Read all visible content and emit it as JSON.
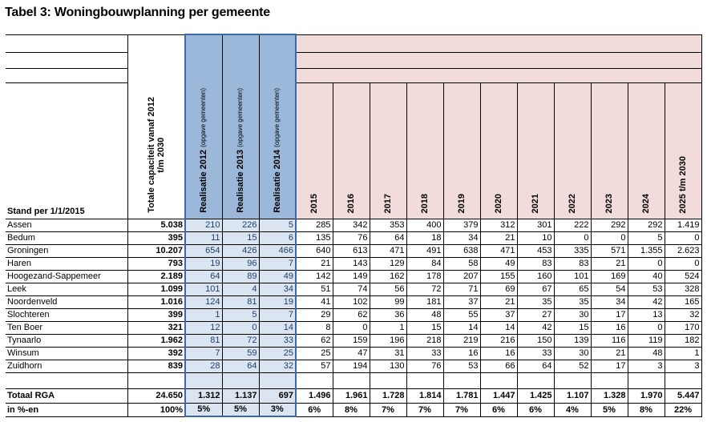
{
  "title": "Tabel 3: Woningbouwplanning per gemeente",
  "header": {
    "stand": "Stand per 1/1/2015",
    "capacity_line1": "Totale capaciteit vanaf 2012",
    "capacity_line2": "t/m 2030",
    "realisatie": [
      {
        "label": "Realisatie 2012",
        "note": "(opgave gemeenten)"
      },
      {
        "label": "Realisatie 2013",
        "note": "(opgave gemeenten)"
      },
      {
        "label": "Realisatie 2014",
        "note": "(opgave gemeenten)"
      }
    ],
    "years": [
      "2015",
      "2016",
      "2017",
      "2018",
      "2019",
      "2020",
      "2021",
      "2022",
      "2023",
      "2024",
      "2025 t/m 2030"
    ]
  },
  "rows": [
    {
      "name": "Assen",
      "total": "5.038",
      "r": [
        "210",
        "226",
        "5"
      ],
      "y": [
        "285",
        "342",
        "353",
        "400",
        "379",
        "312",
        "301",
        "222",
        "292",
        "292",
        "1.419"
      ]
    },
    {
      "name": "Bedum",
      "total": "395",
      "r": [
        "11",
        "15",
        "6"
      ],
      "y": [
        "135",
        "76",
        "64",
        "18",
        "34",
        "21",
        "10",
        "0",
        "0",
        "5",
        "0"
      ]
    },
    {
      "name": "Groningen",
      "total": "10.207",
      "r": [
        "654",
        "426",
        "466"
      ],
      "y": [
        "640",
        "613",
        "471",
        "491",
        "638",
        "471",
        "453",
        "335",
        "571",
        "1.355",
        "2.623"
      ]
    },
    {
      "name": "Haren",
      "total": "793",
      "r": [
        "19",
        "96",
        "7"
      ],
      "y": [
        "21",
        "143",
        "129",
        "84",
        "58",
        "49",
        "83",
        "83",
        "21",
        "0",
        "0"
      ]
    },
    {
      "name": "Hoogezand-Sappemeer",
      "total": "2.189",
      "r": [
        "64",
        "89",
        "49"
      ],
      "y": [
        "142",
        "149",
        "162",
        "178",
        "207",
        "155",
        "160",
        "101",
        "169",
        "40",
        "524"
      ]
    },
    {
      "name": "Leek",
      "total": "1.099",
      "r": [
        "101",
        "4",
        "34"
      ],
      "y": [
        "51",
        "74",
        "56",
        "72",
        "71",
        "69",
        "67",
        "65",
        "54",
        "53",
        "328"
      ]
    },
    {
      "name": "Noordenveld",
      "total": "1.016",
      "r": [
        "124",
        "81",
        "19"
      ],
      "y": [
        "41",
        "102",
        "99",
        "181",
        "37",
        "21",
        "35",
        "35",
        "34",
        "42",
        "165"
      ]
    },
    {
      "name": "Slochteren",
      "total": "399",
      "r": [
        "1",
        "5",
        "7"
      ],
      "y": [
        "29",
        "62",
        "36",
        "48",
        "55",
        "37",
        "27",
        "30",
        "17",
        "13",
        "32"
      ]
    },
    {
      "name": "Ten Boer",
      "total": "321",
      "r": [
        "12",
        "0",
        "14"
      ],
      "y": [
        "8",
        "0",
        "1",
        "15",
        "14",
        "14",
        "42",
        "15",
        "16",
        "0",
        "170"
      ]
    },
    {
      "name": "Tynaarlo",
      "total": "1.962",
      "r": [
        "81",
        "72",
        "33"
      ],
      "y": [
        "62",
        "159",
        "196",
        "218",
        "219",
        "216",
        "150",
        "139",
        "116",
        "119",
        "182"
      ]
    },
    {
      "name": "Winsum",
      "total": "392",
      "r": [
        "7",
        "59",
        "25"
      ],
      "y": [
        "25",
        "47",
        "31",
        "33",
        "16",
        "16",
        "33",
        "30",
        "21",
        "48",
        "1"
      ]
    },
    {
      "name": "Zuidhorn",
      "total": "839",
      "r": [
        "28",
        "64",
        "32"
      ],
      "y": [
        "57",
        "194",
        "130",
        "76",
        "53",
        "66",
        "64",
        "52",
        "17",
        "3",
        "3"
      ]
    }
  ],
  "totaal": {
    "name": "Totaal RGA",
    "total": "24.650",
    "r": [
      "1.312",
      "1.137",
      "697"
    ],
    "y": [
      "1.496",
      "1.961",
      "1.728",
      "1.814",
      "1.781",
      "1.447",
      "1.425",
      "1.107",
      "1.328",
      "1.970",
      "5.447"
    ]
  },
  "pct": {
    "name": "in %-en",
    "total": "100%",
    "r": [
      "5%",
      "5%",
      "3%"
    ],
    "y": [
      "6%",
      "8%",
      "7%",
      "7%",
      "7%",
      "6%",
      "6%",
      "4%",
      "5%",
      "8%",
      "22%"
    ]
  }
}
